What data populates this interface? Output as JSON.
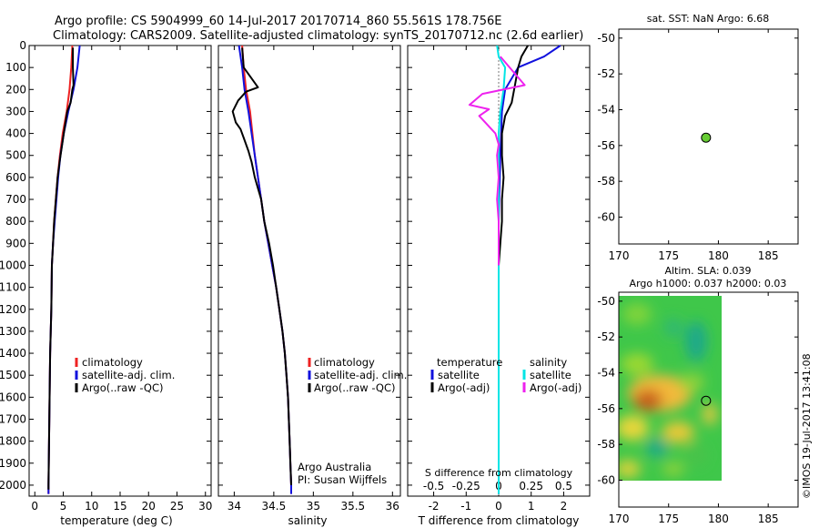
{
  "header": {
    "line1": "Argo profile: CS 5904999_60 14-Jul-2017 20170714_860 55.561S 178.756E",
    "line2": "Climatology: CARS2009. Satellite-adjusted climatology: synTS_20170712.nc (2.6d earlier)"
  },
  "colors": {
    "climatology": "#ee2222",
    "satellite": "#1111dd",
    "argo": "#000000",
    "sat_salinity": "#00e5e5",
    "argo_salinity": "#ee22ee",
    "marker": "#66cc33"
  },
  "panels": {
    "temperature": {
      "xlabel": "temperature (deg C)",
      "legend": [
        "climatology",
        "satellite-adj. clim.",
        "Argo(..raw -QC)"
      ]
    },
    "salinity": {
      "xlabel": "salinity",
      "legend": [
        "climatology",
        "satellite-adj. clim.",
        "Argo(..raw -QC)"
      ],
      "note1": "Argo Australia",
      "note2": "PI: Susan Wijffels"
    },
    "difference": {
      "xlabel": "T difference from climatology",
      "s_label": "S difference from climatology",
      "col1": "temperature",
      "col2": "salinity",
      "item_sat": "satellite",
      "item_argo": "Argo(-adj)"
    },
    "sst_map": {
      "title": "sat. SST: NaN Argo: 6.68"
    },
    "sla_map": {
      "title1": "Altim. SLA: 0.039",
      "title2": "Argo h1000: 0.037 h2000: 0.03"
    },
    "stamp": "©IMOS 19-Jul-2017 13:41:08"
  },
  "chart_data": [
    {
      "type": "line",
      "panel": "temperature",
      "xlabel": "temperature (deg C)",
      "xlim": [
        -1,
        31
      ],
      "ylim": [
        2050,
        0
      ],
      "xticks": [
        0,
        5,
        10,
        15,
        20,
        25,
        30
      ],
      "yticks": [
        0,
        100,
        200,
        300,
        400,
        500,
        600,
        700,
        800,
        900,
        1000,
        1100,
        1200,
        1300,
        1400,
        1500,
        1600,
        1700,
        1800,
        1900,
        2000
      ],
      "series": [
        {
          "name": "climatology",
          "color": "#ee2222",
          "points": [
            [
              6.6,
              0
            ],
            [
              6.4,
              100
            ],
            [
              6.1,
              200
            ],
            [
              5.6,
              300
            ],
            [
              4.9,
              400
            ],
            [
              4.4,
              500
            ],
            [
              4.0,
              600
            ],
            [
              3.7,
              700
            ],
            [
              3.4,
              800
            ],
            [
              3.2,
              900
            ],
            [
              3.0,
              1000
            ],
            [
              2.9,
              1200
            ],
            [
              2.7,
              1400
            ],
            [
              2.6,
              1600
            ],
            [
              2.5,
              1800
            ],
            [
              2.4,
              2000
            ],
            [
              2.4,
              2040
            ]
          ]
        },
        {
          "name": "satellite-adj. clim.",
          "color": "#1111dd",
          "points": [
            [
              7.9,
              0
            ],
            [
              7.5,
              100
            ],
            [
              6.8,
              200
            ],
            [
              5.9,
              300
            ],
            [
              5.1,
              400
            ],
            [
              4.5,
              500
            ],
            [
              4.1,
              600
            ],
            [
              3.8,
              700
            ],
            [
              3.5,
              800
            ],
            [
              3.2,
              900
            ],
            [
              3.0,
              1000
            ],
            [
              2.9,
              1200
            ],
            [
              2.7,
              1400
            ],
            [
              2.6,
              1600
            ],
            [
              2.5,
              1800
            ],
            [
              2.4,
              2000
            ],
            [
              2.4,
              2040
            ]
          ]
        },
        {
          "name": "Argo(..raw -QC)",
          "color": "#000000",
          "points": [
            [
              6.7,
              10
            ],
            [
              6.7,
              100
            ],
            [
              6.8,
              180
            ],
            [
              6.6,
              200
            ],
            [
              6.3,
              260
            ],
            [
              5.7,
              300
            ],
            [
              5.2,
              380
            ],
            [
              4.8,
              450
            ],
            [
              4.4,
              520
            ],
            [
              4.0,
              600
            ],
            [
              3.7,
              700
            ],
            [
              3.4,
              800
            ],
            [
              3.2,
              900
            ],
            [
              3.0,
              1000
            ],
            [
              2.9,
              1200
            ],
            [
              2.7,
              1400
            ],
            [
              2.6,
              1600
            ],
            [
              2.5,
              1800
            ],
            [
              2.4,
              2000
            ],
            [
              2.4,
              2020
            ]
          ]
        }
      ]
    },
    {
      "type": "line",
      "panel": "salinity",
      "xlabel": "salinity",
      "xlim": [
        33.8,
        36.1
      ],
      "ylim": [
        2050,
        0
      ],
      "xticks": [
        34,
        34.5,
        35,
        35.5,
        36
      ],
      "series": [
        {
          "name": "climatology",
          "color": "#ee2222",
          "points": [
            [
              34.1,
              0
            ],
            [
              34.12,
              100
            ],
            [
              34.15,
              200
            ],
            [
              34.2,
              300
            ],
            [
              34.23,
              400
            ],
            [
              34.26,
              500
            ],
            [
              34.3,
              600
            ],
            [
              34.34,
              700
            ],
            [
              34.38,
              800
            ],
            [
              34.43,
              900
            ],
            [
              34.48,
              1000
            ],
            [
              34.53,
              1100
            ],
            [
              34.57,
              1200
            ],
            [
              34.61,
              1300
            ],
            [
              34.64,
              1400
            ],
            [
              34.66,
              1500
            ],
            [
              34.68,
              1600
            ],
            [
              34.69,
              1700
            ],
            [
              34.7,
              1800
            ],
            [
              34.71,
              1900
            ],
            [
              34.72,
              2000
            ],
            [
              34.72,
              2040
            ]
          ]
        },
        {
          "name": "satellite-adj. clim.",
          "color": "#1111dd",
          "points": [
            [
              34.06,
              0
            ],
            [
              34.1,
              100
            ],
            [
              34.13,
              200
            ],
            [
              34.18,
              300
            ],
            [
              34.22,
              400
            ],
            [
              34.26,
              500
            ],
            [
              34.3,
              600
            ],
            [
              34.34,
              700
            ],
            [
              34.38,
              800
            ],
            [
              34.43,
              900
            ],
            [
              34.48,
              1000
            ],
            [
              34.53,
              1100
            ],
            [
              34.57,
              1200
            ],
            [
              34.61,
              1300
            ],
            [
              34.64,
              1400
            ],
            [
              34.66,
              1500
            ],
            [
              34.68,
              1600
            ],
            [
              34.69,
              1700
            ],
            [
              34.7,
              1800
            ],
            [
              34.71,
              1900
            ],
            [
              34.72,
              2000
            ],
            [
              34.72,
              2040
            ]
          ]
        },
        {
          "name": "Argo(..raw -QC)",
          "color": "#000000",
          "points": [
            [
              34.1,
              10
            ],
            [
              34.12,
              100
            ],
            [
              34.3,
              190
            ],
            [
              34.15,
              210
            ],
            [
              34.05,
              250
            ],
            [
              33.98,
              300
            ],
            [
              34.02,
              350
            ],
            [
              34.08,
              380
            ],
            [
              34.12,
              420
            ],
            [
              34.18,
              480
            ],
            [
              34.22,
              530
            ],
            [
              34.26,
              600
            ],
            [
              34.3,
              650
            ],
            [
              34.34,
              700
            ],
            [
              34.38,
              800
            ],
            [
              34.44,
              900
            ],
            [
              34.49,
              1000
            ],
            [
              34.53,
              1100
            ],
            [
              34.57,
              1200
            ],
            [
              34.61,
              1300
            ],
            [
              34.64,
              1400
            ],
            [
              34.66,
              1500
            ],
            [
              34.68,
              1600
            ],
            [
              34.69,
              1700
            ],
            [
              34.7,
              1800
            ],
            [
              34.71,
              1900
            ],
            [
              34.72,
              2000
            ]
          ]
        }
      ]
    },
    {
      "type": "line",
      "panel": "difference",
      "xlabel": "T difference from climatology",
      "xlim": [
        -2.8,
        2.8
      ],
      "ylim": [
        2050,
        0
      ],
      "xticks": [
        -2,
        -1,
        0,
        1,
        2
      ],
      "s_xticks": [
        "-0.5",
        "-0.25",
        "0",
        "0.25",
        "0.5"
      ],
      "series": [
        {
          "name": "satellite (temperature)",
          "color": "#1111dd",
          "points": [
            [
              1.9,
              0
            ],
            [
              1.4,
              50
            ],
            [
              0.6,
              100
            ],
            [
              0.2,
              200
            ],
            [
              0.1,
              300
            ],
            [
              0.05,
              500
            ],
            [
              0.0,
              800
            ],
            [
              0.0,
              1200
            ],
            [
              0.0,
              2040
            ]
          ]
        },
        {
          "name": "Argo(-adj) (temperature)",
          "color": "#000000",
          "points": [
            [
              0.9,
              0
            ],
            [
              0.7,
              50
            ],
            [
              0.6,
              100
            ],
            [
              0.5,
              180
            ],
            [
              0.4,
              260
            ],
            [
              0.2,
              320
            ],
            [
              0.1,
              400
            ],
            [
              0.1,
              500
            ],
            [
              0.15,
              600
            ],
            [
              0.1,
              700
            ],
            [
              0.1,
              800
            ],
            [
              0.05,
              900
            ],
            [
              0.0,
              1000
            ],
            [
              0.0,
              1200
            ],
            [
              0.0,
              2020
            ]
          ]
        },
        {
          "name": "satellite (salinity)",
          "color": "#00e5e5",
          "points": [
            [
              -0.05,
              0
            ],
            [
              0.0,
              50
            ],
            [
              0.2,
              100
            ],
            [
              0.15,
              200
            ],
            [
              0.05,
              300
            ],
            [
              0.0,
              400
            ],
            [
              0.0,
              600
            ],
            [
              0.0,
              800
            ],
            [
              0.0,
              1000
            ],
            [
              0.0,
              1200
            ],
            [
              0.0,
              2040
            ]
          ]
        },
        {
          "name": "Argo(-adj) (salinity)",
          "color": "#ee22ee",
          "points": [
            [
              0.05,
              50
            ],
            [
              0.8,
              180
            ],
            [
              -0.5,
              220
            ],
            [
              -0.9,
              270
            ],
            [
              -0.3,
              290
            ],
            [
              -0.6,
              320
            ],
            [
              -0.1,
              400
            ],
            [
              0.0,
              450
            ],
            [
              -0.05,
              500
            ],
            [
              0.0,
              600
            ],
            [
              -0.05,
              700
            ],
            [
              0.0,
              800
            ],
            [
              0.0,
              900
            ],
            [
              0.0,
              1000
            ]
          ]
        }
      ]
    },
    {
      "type": "scatter",
      "panel": "sst_map",
      "title": "sat. SST: NaN Argo: 6.68",
      "xlim": [
        170,
        188
      ],
      "ylim": [
        -61.5,
        -49.5
      ],
      "xticks": [
        170,
        175,
        180,
        185
      ],
      "yticks": [
        -50,
        -52,
        -54,
        -56,
        -58,
        -60
      ],
      "points": [
        {
          "x": 178.756,
          "y": -55.561
        }
      ]
    },
    {
      "type": "heatmap",
      "panel": "sla_map",
      "title": "Altim. SLA: 0.039",
      "xlim": [
        170,
        188
      ],
      "ylim": [
        -61.5,
        -49.5
      ],
      "xticks": [
        170,
        175,
        180,
        185
      ],
      "yticks": [
        -50,
        -52,
        -54,
        -56,
        -58,
        -60
      ],
      "points": [
        {
          "x": 178.756,
          "y": -55.561
        }
      ]
    }
  ]
}
